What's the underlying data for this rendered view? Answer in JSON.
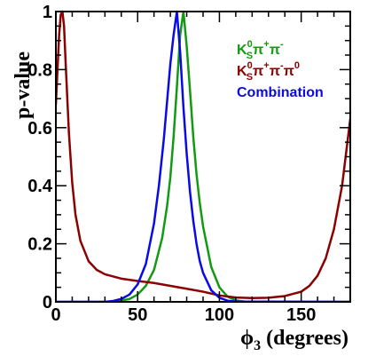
{
  "chart_data": {
    "type": "line",
    "ylabel": "p-value",
    "xlabel_parts": {
      "symbol": "ϕ",
      "subscript": "3",
      "unit": " (degrees)"
    },
    "xlim": [
      0,
      180
    ],
    "ylim": [
      0,
      1
    ],
    "x_ticks": [
      0,
      50,
      100,
      150
    ],
    "x_tick_labels": [
      "0",
      "50",
      "100",
      "150"
    ],
    "y_ticks": [
      0,
      0.2,
      0.4,
      0.6,
      0.8,
      1
    ],
    "y_tick_labels": [
      "0",
      "0.2",
      "0.4",
      "0.6",
      "0.8",
      "1"
    ],
    "grid": false,
    "legend_position": "top-right",
    "series": [
      {
        "name": "K_S^0 π^+ π^-",
        "legend_label": {
          "K": "K",
          "sup0": "0",
          "subS": "S",
          "pi1": "π",
          "sup1": "+",
          "pi2": "π",
          "sup2": "-"
        },
        "color": "#129a12",
        "x": [
          0,
          35,
          40,
          45,
          50,
          55,
          60,
          65,
          68,
          70,
          72,
          74,
          76,
          78,
          80,
          82,
          84,
          86,
          88,
          90,
          95,
          100,
          105,
          110,
          115,
          120,
          180
        ],
        "y": [
          0,
          0,
          0.004,
          0.01,
          0.025,
          0.055,
          0.11,
          0.22,
          0.33,
          0.43,
          0.57,
          0.74,
          0.92,
          1.0,
          0.88,
          0.73,
          0.57,
          0.44,
          0.34,
          0.26,
          0.12,
          0.05,
          0.018,
          0.005,
          0.001,
          0,
          0
        ]
      },
      {
        "name": "K_S^0 π^+ π^- π^0",
        "legend_label": {
          "K": "K",
          "sup0": "0",
          "subS": "S",
          "pi1": "π",
          "sup1": "+",
          "pi2": "π",
          "sup2": "-",
          "pi3": "π",
          "sup3": "0"
        },
        "color": "#8b0000",
        "x": [
          0,
          1,
          2,
          3,
          4,
          5,
          6,
          8,
          10,
          12,
          15,
          20,
          25,
          30,
          40,
          50,
          60,
          70,
          80,
          90,
          100,
          110,
          120,
          130,
          140,
          150,
          155,
          160,
          165,
          170,
          175,
          180
        ],
        "y": [
          0.68,
          0.8,
          0.92,
          0.99,
          1.0,
          0.95,
          0.82,
          0.58,
          0.41,
          0.3,
          0.21,
          0.14,
          0.11,
          0.095,
          0.08,
          0.072,
          0.065,
          0.055,
          0.045,
          0.035,
          0.022,
          0.015,
          0.013,
          0.014,
          0.02,
          0.035,
          0.055,
          0.09,
          0.15,
          0.25,
          0.4,
          0.63
        ]
      },
      {
        "name": "Combination",
        "color": "#0a0ae6",
        "x": [
          0,
          30,
          35,
          40,
          45,
          50,
          55,
          60,
          63,
          66,
          68,
          70,
          72,
          74,
          76,
          78,
          80,
          82,
          84,
          86,
          88,
          90,
          95,
          100,
          105,
          110,
          180
        ],
        "y": [
          0,
          0,
          0.003,
          0.01,
          0.025,
          0.06,
          0.13,
          0.27,
          0.4,
          0.56,
          0.69,
          0.82,
          0.92,
          1.0,
          0.86,
          0.67,
          0.51,
          0.38,
          0.28,
          0.2,
          0.14,
          0.1,
          0.04,
          0.014,
          0.004,
          0.001,
          0
        ]
      }
    ]
  }
}
